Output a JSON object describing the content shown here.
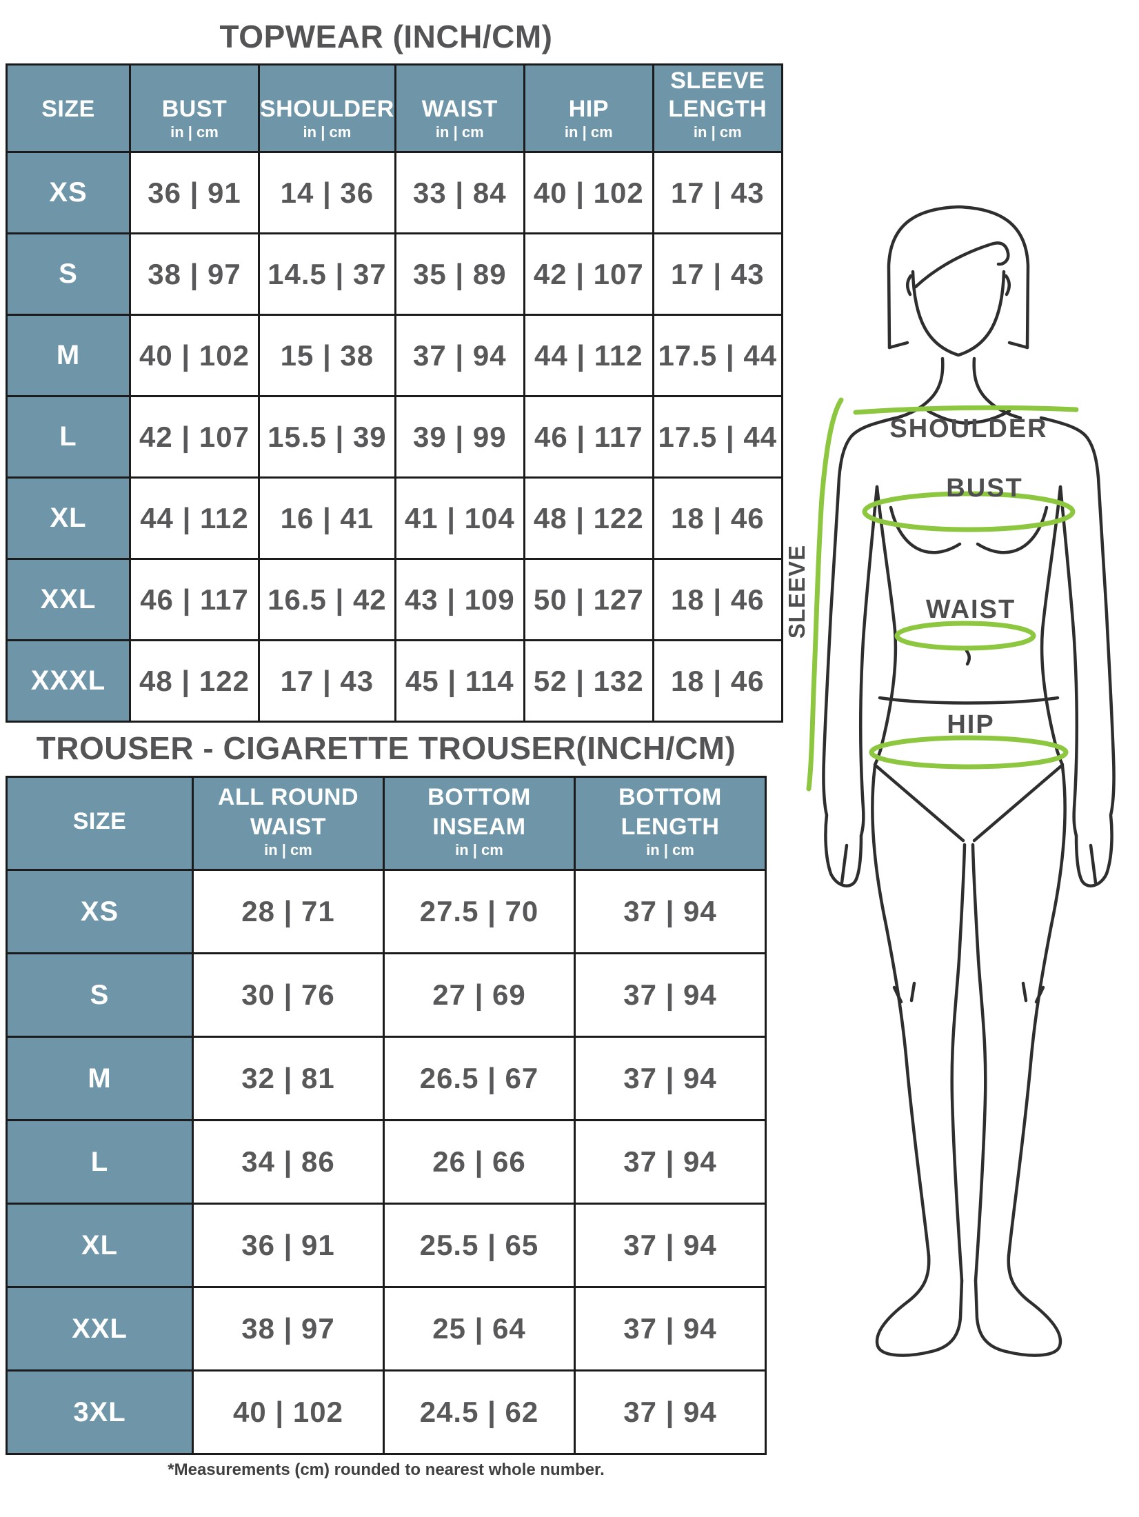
{
  "topwear": {
    "title": "TOPWEAR (INCH/CM)",
    "unit": "in | cm",
    "columns": [
      "SIZE",
      "BUST",
      "SHOULDER",
      "WAIST",
      "HIP",
      "SLEEVE LENGTH"
    ],
    "rows": [
      [
        "XS",
        "36 | 91",
        "14 | 36",
        "33 | 84",
        "40 | 102",
        "17 | 43"
      ],
      [
        "S",
        "38 | 97",
        "14.5 | 37",
        "35 | 89",
        "42 | 107",
        "17 | 43"
      ],
      [
        "M",
        "40 | 102",
        "15 | 38",
        "37 | 94",
        "44 | 112",
        "17.5 | 44"
      ],
      [
        "L",
        "42 | 107",
        "15.5 | 39",
        "39 | 99",
        "46 | 117",
        "17.5 | 44"
      ],
      [
        "XL",
        "44 | 112",
        "16 | 41",
        "41 | 104",
        "48 | 122",
        "18 | 46"
      ],
      [
        "XXL",
        "46 | 117",
        "16.5 | 42",
        "43 | 109",
        "50 | 127",
        "18 | 46"
      ],
      [
        "XXXL",
        "48 | 122",
        "17 | 43",
        "45 | 114",
        "52 | 132",
        "18 | 46"
      ]
    ]
  },
  "trouser": {
    "title": "TROUSER - CIGARETTE TROUSER(INCH/CM)",
    "unit": "in | cm",
    "columns": [
      "SIZE",
      "ALL ROUND WAIST",
      "BOTTOM INSEAM",
      "BOTTOM LENGTH"
    ],
    "rows": [
      [
        "XS",
        "28 | 71",
        "27.5 | 70",
        "37 | 94"
      ],
      [
        "S",
        "30 | 76",
        "27 | 69",
        "37 | 94"
      ],
      [
        "M",
        "32 | 81",
        "26.5 | 67",
        "37 | 94"
      ],
      [
        "L",
        "34 | 86",
        "26 | 66",
        "37 | 94"
      ],
      [
        "XL",
        "36 | 91",
        "25.5 | 65",
        "37 | 94"
      ],
      [
        "XXL",
        "38 | 97",
        "25 | 64",
        "37 | 94"
      ],
      [
        "3XL",
        "40 | 102",
        "24.5 | 62",
        "37 | 94"
      ]
    ]
  },
  "figure": {
    "labels": {
      "shoulder": "SHOULDER",
      "bust": "BUST",
      "waist": "WAIST",
      "hip": "HIP",
      "sleeve": "SLEEVE"
    }
  },
  "footnote": "*Measurements (cm) rounded to nearest whole number.",
  "colors": {
    "header_bg": "#6e96a8",
    "border": "#1b1b1b",
    "value_text": "#58585a",
    "title_text": "#545456",
    "measure_green": "#8dc63f"
  }
}
